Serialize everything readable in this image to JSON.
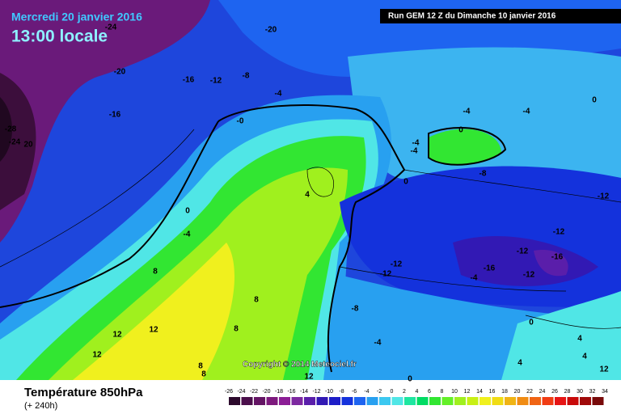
{
  "header": {
    "date": "Mercredi 20 janvier 2016",
    "time": "13:00 locale",
    "run": "Run GEM 12 Z du Dimanche 10 janvier 2016"
  },
  "copyright": "Copyright © 2014 Meteociel.fr",
  "footer": {
    "title": "Température 850hPa",
    "lead": "(+ 240h)"
  },
  "contour_labels": [
    "-24",
    "-20",
    "-20",
    "-16",
    "-12",
    "-8",
    "-4",
    "-16",
    "-28",
    "-24",
    "20",
    "-0",
    "0",
    "-4",
    "-4",
    "0",
    "-4",
    "-4",
    "-8",
    "0",
    "4",
    "-12",
    "0",
    "-4",
    "-12",
    "8",
    "-12",
    "-12",
    "-12",
    "-16",
    "-16",
    "-4",
    "-12",
    "8",
    "-8",
    "0",
    "12",
    "12",
    "8",
    "-4",
    "4",
    "4",
    "12",
    "8",
    "8",
    "12",
    "12",
    "4",
    "0"
  ],
  "legend": {
    "ticks": [
      -26,
      -24,
      -22,
      -20,
      -18,
      -16,
      -14,
      -12,
      -10,
      -8,
      -6,
      -4,
      -2,
      0,
      2,
      4,
      6,
      8,
      10,
      12,
      14,
      16,
      18,
      20,
      22,
      24,
      26,
      28,
      30,
      32,
      34
    ],
    "colors": [
      "#2d0a2d",
      "#4b0f4b",
      "#641464",
      "#7d197d",
      "#8c1e96",
      "#7d28a0",
      "#5a1eaa",
      "#3219b4",
      "#1e1ec8",
      "#1432dc",
      "#1e64f0",
      "#28a0f0",
      "#3cc8f0",
      "#50e6e6",
      "#1ee6a0",
      "#00dc64",
      "#32e632",
      "#64f028",
      "#a0f01e",
      "#c8f014",
      "#f0f01e",
      "#f0dc14",
      "#f0b414",
      "#f08c14",
      "#f06414",
      "#f03c14",
      "#e61414",
      "#c80a0a",
      "#a00a0a",
      "#780a0a",
      "#3c0a0a"
    ]
  }
}
